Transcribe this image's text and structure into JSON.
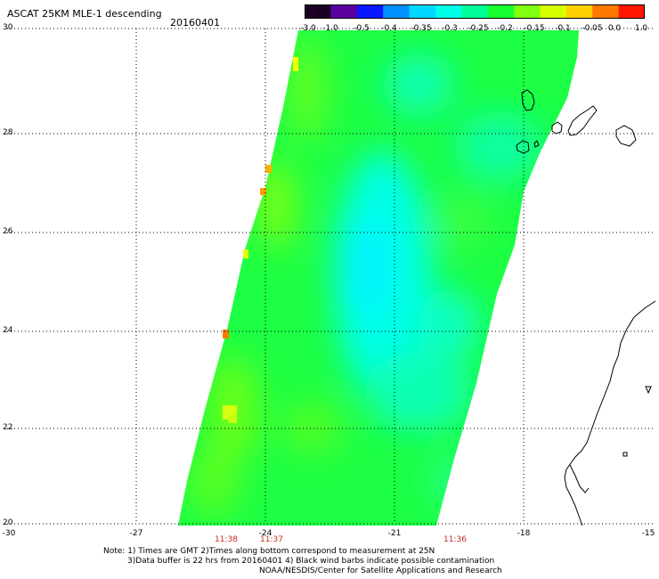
{
  "header": {
    "title": "ASCAT 25KM MLE-1 descending",
    "date": "20160401"
  },
  "colorbar": {
    "labels": [
      "-3.0",
      "-1.0",
      "-0.5",
      "-0.4",
      "-0.35",
      "-0.3",
      "-0.25",
      "-0.2",
      "-0.15",
      "-0.1",
      "-0.05",
      "0.0",
      "1.0"
    ],
    "colors": [
      "#1a0022",
      "#5a00a0",
      "#0a18ff",
      "#0090ff",
      "#00d8ff",
      "#00ffe8",
      "#00ff98",
      "#18ff30",
      "#80ff10",
      "#d8ff00",
      "#ffd000",
      "#ff7800",
      "#ff1600"
    ]
  },
  "axes": {
    "lat_ticks": [
      "30",
      "28",
      "26",
      "24",
      "22",
      "20"
    ],
    "lon_ticks": [
      "-30",
      "-27",
      "-24",
      "-21",
      "-18",
      "-15"
    ],
    "lat_range": [
      20,
      30
    ],
    "lon_range": [
      -30,
      -15
    ],
    "grid": "dotted"
  },
  "times": [
    "11:38",
    "11:37",
    "11:36"
  ],
  "notes": {
    "line1": "Note: 1) Times are GMT 2)Times along bottom correspond to measurement at 25N",
    "line2": "3)Data buffer is 22 hrs from 20160401 4) Black wind barbs indicate possible contamination",
    "line3": "NOAA/NESDIS/Center for Satellite Applications and Research"
  }
}
